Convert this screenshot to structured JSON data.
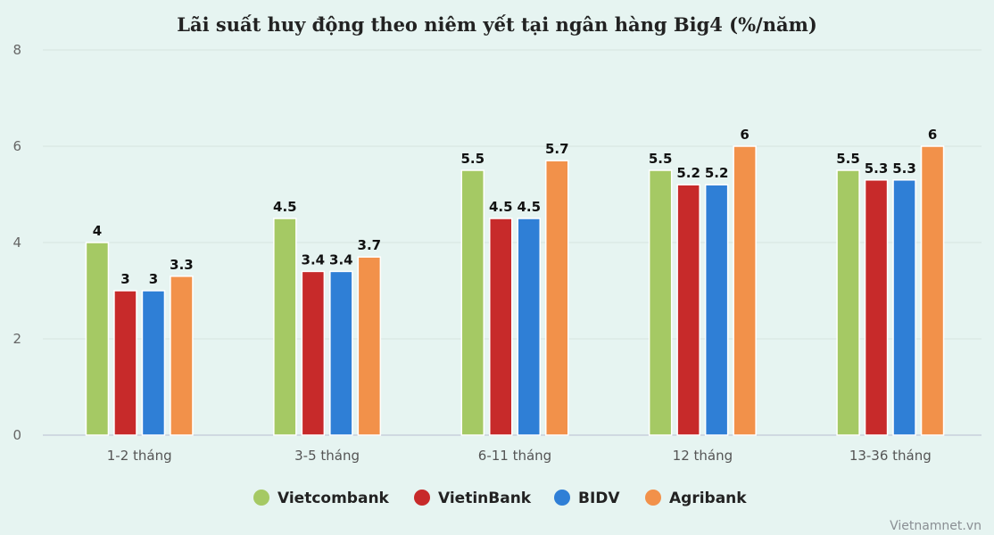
{
  "chart_data": {
    "type": "bar",
    "title": "Lãi suất huy động theo niêm yết tại ngân hàng Big4 (%/năm)",
    "xlabel": "",
    "ylabel": "",
    "ylim": [
      0,
      8
    ],
    "yticks": [
      0,
      2,
      4,
      6,
      8
    ],
    "grid": true,
    "legend_position": "bottom-center",
    "categories": [
      "1-2 tháng",
      "3-5 tháng",
      "6-11 tháng",
      "12 tháng",
      "13-36 tháng"
    ],
    "series": [
      {
        "name": "Vietcombank",
        "color": "#a5c964",
        "values": [
          4,
          4.5,
          5.5,
          5.5,
          5.5
        ]
      },
      {
        "name": "VietinBank",
        "color": "#c72a2a",
        "values": [
          3,
          3.4,
          4.5,
          5.2,
          5.3
        ]
      },
      {
        "name": "BIDV",
        "color": "#2f7fd6",
        "values": [
          3,
          3.4,
          4.5,
          5.2,
          5.3
        ]
      },
      {
        "name": "Agribank",
        "color": "#f2914a",
        "values": [
          3.3,
          3.7,
          5.7,
          6,
          6
        ]
      }
    ]
  },
  "source": "Vietnamnet.vn"
}
